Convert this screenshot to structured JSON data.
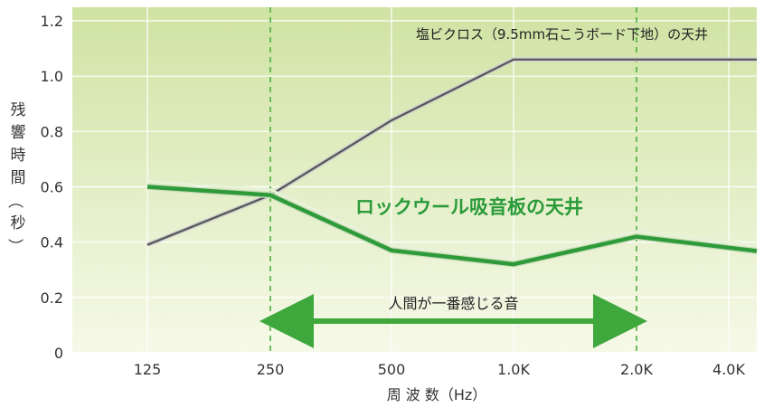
{
  "chart_data": {
    "type": "line",
    "x": [
      "125",
      "250",
      "500",
      "1.0K",
      "2.0K",
      "4.0K"
    ],
    "xlabel": "周 波 数（Hz）",
    "ylabel": "残響時間（秒）",
    "ylim": [
      0,
      1.2
    ],
    "yticks": [
      "0",
      "0.2",
      "0.4",
      "0.6",
      "0.8",
      "1.0",
      "1.2"
    ],
    "grid": true,
    "series": [
      {
        "name": "塩ビクロス（9.5mm石こうボード下地）の天井",
        "values": [
          0.39,
          0.57,
          0.84,
          1.06,
          1.06,
          1.06
        ],
        "color": "#555555"
      },
      {
        "name": "ロックウール吸音板の天井",
        "values": [
          0.6,
          0.57,
          0.37,
          0.32,
          0.42,
          0.38
        ],
        "color": "#2e9a3a"
      }
    ],
    "annotations": [
      {
        "text": "人間が一番感じる音",
        "from": "250",
        "to": "2.0K"
      }
    ],
    "colors": {
      "bg_top": "#cfe3a3",
      "bg_bottom": "#f6f9e8",
      "grid": "#ffffff",
      "dashed": "#4caf3f",
      "arrow": "#3ea83c",
      "green_label": "#2a9a3a"
    }
  }
}
